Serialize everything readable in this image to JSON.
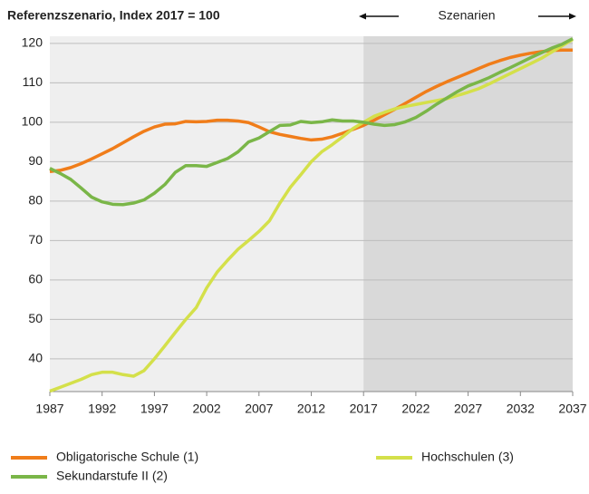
{
  "chart_data": {
    "type": "line",
    "title": "Referenzszenario, Index 2017 = 100",
    "annotation": "Szenarien",
    "scenario_from": 2017,
    "x": [
      1987,
      1988,
      1989,
      1990,
      1991,
      1992,
      1993,
      1994,
      1995,
      1996,
      1997,
      1998,
      1999,
      2000,
      2001,
      2002,
      2003,
      2004,
      2005,
      2006,
      2007,
      2008,
      2009,
      2010,
      2011,
      2012,
      2013,
      2014,
      2015,
      2016,
      2017,
      2018,
      2019,
      2020,
      2021,
      2022,
      2023,
      2024,
      2025,
      2026,
      2027,
      2028,
      2029,
      2030,
      2031,
      2032,
      2033,
      2034,
      2035,
      2036,
      2037
    ],
    "xlim": [
      1987,
      2037
    ],
    "xticks": [
      1987,
      1992,
      1997,
      2002,
      2007,
      2012,
      2017,
      2022,
      2027,
      2032,
      2037
    ],
    "ylim": [
      31.7,
      121.8
    ],
    "yticks": [
      40,
      50,
      60,
      70,
      80,
      90,
      100,
      110,
      120
    ],
    "grid": true,
    "series": [
      {
        "name": "Obligatorische Schule (1)",
        "color": "#f07d1a",
        "values": [
          87.5,
          87.8,
          88.5,
          89.5,
          90.7,
          92,
          93.3,
          94.8,
          96.3,
          97.7,
          98.8,
          99.5,
          99.6,
          100.2,
          100.1,
          100.2,
          100.5,
          100.5,
          100.3,
          99.9,
          98.8,
          97.6,
          96.9,
          96.4,
          95.9,
          95.5,
          95.7,
          96.3,
          97.2,
          98.2,
          99.2,
          100.5,
          101.9,
          103.3,
          104.8,
          106.3,
          107.8,
          109.1,
          110.3,
          111.4,
          112.5,
          113.6,
          114.7,
          115.6,
          116.4,
          117,
          117.5,
          117.9,
          118.2,
          118.3,
          118.3
        ]
      },
      {
        "name": "Hochschulen (3)",
        "color": "#d4e04a",
        "values": [
          31.8,
          32.8,
          33.8,
          34.8,
          36,
          36.6,
          36.6,
          36,
          35.6,
          37,
          40,
          43.3,
          46.7,
          50,
          53,
          58,
          62,
          65,
          67.8,
          70,
          72.3,
          75,
          79.5,
          83.5,
          86.7,
          90,
          92.5,
          94.3,
          96.3,
          98.4,
          100,
          101.5,
          102.5,
          103.4,
          104,
          104.5,
          105,
          105.5,
          106,
          106.8,
          107.6,
          108.5,
          109.7,
          111,
          112.3,
          113.6,
          114.9,
          116.2,
          117.8,
          119.4,
          121
        ]
      },
      {
        "name": "Sekundarstufe II (2)",
        "color": "#7ab648",
        "values": [
          88.3,
          87,
          85.5,
          83.3,
          81,
          79.8,
          79.2,
          79.1,
          79.5,
          80.3,
          82,
          84.2,
          87.3,
          89,
          89,
          88.8,
          89.8,
          90.8,
          92.5,
          95,
          96,
          97.6,
          99.2,
          99.3,
          100.2,
          99.9,
          100.1,
          100.6,
          100.3,
          100.3,
          100,
          99.5,
          99.2,
          99.4,
          100.1,
          101.2,
          102.8,
          104.6,
          106.2,
          107.8,
          109.2,
          110.2,
          111.3,
          112.6,
          113.8,
          115.1,
          116.4,
          117.6,
          118.8,
          119.8,
          121.2
        ]
      }
    ]
  }
}
